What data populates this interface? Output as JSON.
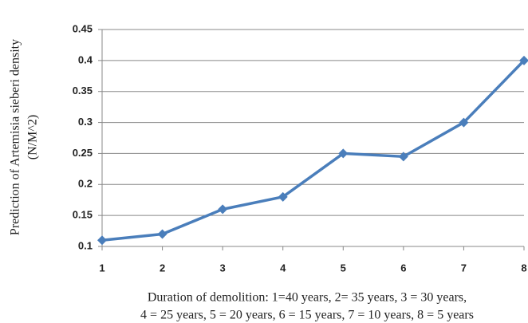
{
  "chart_data": {
    "type": "line",
    "x": [
      1,
      2,
      3,
      4,
      5,
      6,
      7,
      8
    ],
    "series": [
      {
        "name": "Prediction",
        "color": "#4a7ebb",
        "values": [
          0.11,
          0.12,
          0.16,
          0.18,
          0.25,
          0.245,
          0.3,
          0.4
        ]
      }
    ],
    "xlim": [
      1,
      8
    ],
    "xticks": [
      1,
      2,
      3,
      4,
      5,
      6,
      7,
      8
    ],
    "ylim": [
      0.1,
      0.45
    ],
    "yticks": [
      0.1,
      0.15,
      0.2,
      0.25,
      0.3,
      0.35,
      0.4,
      0.45
    ],
    "grid": true,
    "ylabel": [
      "Prediction of Artemisia sieberi density",
      "(N/M^2)"
    ],
    "xlabel": [
      "Duration of demolition: 1=40 years, 2= 35 years, 3 = 30 years,",
      "4 = 25 years, 5 = 20 years, 6 = 15 years, 7 = 10 years, 8 = 5 years"
    ]
  }
}
